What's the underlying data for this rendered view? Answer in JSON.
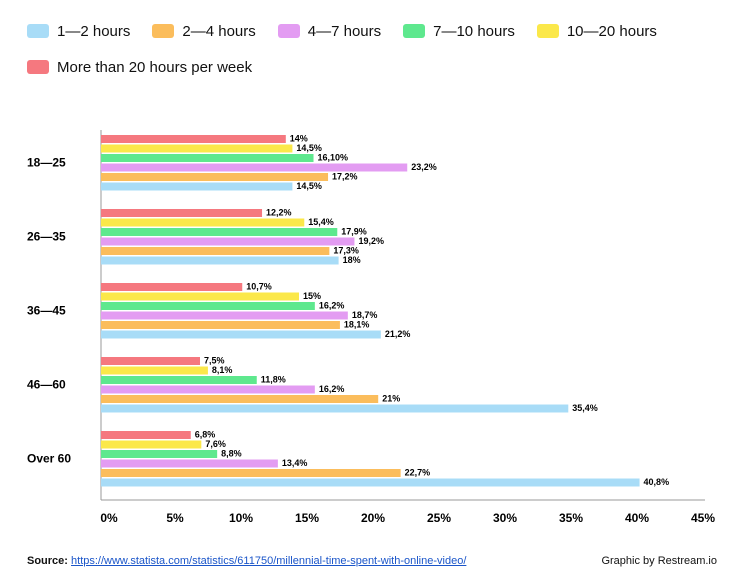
{
  "chart_data": {
    "type": "hbar",
    "categories": [
      "18—25",
      "26—35",
      "36—45",
      "46—60",
      "Over 60"
    ],
    "series": [
      {
        "name": "1—2 hours",
        "color": "#a8dcf7",
        "values": [
          14.5,
          18,
          21.2,
          35.4,
          40.8
        ],
        "value_labels": [
          "14,5%",
          "18%",
          "21,2%",
          "35,4%",
          "40,8%"
        ]
      },
      {
        "name": "2—4 hours",
        "color": "#fbbd5c",
        "values": [
          17.2,
          17.3,
          18.1,
          21,
          22.7
        ],
        "value_labels": [
          "17,2%",
          "17,3%",
          "18,1%",
          "21%",
          "22,7%"
        ]
      },
      {
        "name": "4—7 hours",
        "color": "#e39cf2",
        "values": [
          23.2,
          19.2,
          18.7,
          16.2,
          13.4
        ],
        "value_labels": [
          "23,2%",
          "19,2%",
          "18,7%",
          "16,2%",
          "13,4%"
        ]
      },
      {
        "name": "7—10 hours",
        "color": "#5ee88e",
        "values": [
          16.1,
          17.9,
          16.2,
          11.8,
          8.8
        ],
        "value_labels": [
          "16,10%",
          "17,9%",
          "16,2%",
          "11,8%",
          "8,8%"
        ]
      },
      {
        "name": "10—20 hours",
        "color": "#fbe84a",
        "values": [
          14.5,
          15.4,
          15,
          8.1,
          7.6
        ],
        "value_labels": [
          "14,5%",
          "15,4%",
          "15%",
          "8,1%",
          "7,6%"
        ]
      },
      {
        "name": "More than 20 hours per week",
        "color": "#f5787f",
        "values": [
          14,
          12.2,
          10.7,
          7.5,
          6.8
        ],
        "value_labels": [
          "14%",
          "12,2%",
          "10,7%",
          "7,5%",
          "6,8%"
        ]
      }
    ],
    "xlim": [
      0,
      45
    ],
    "xticks": [
      {
        "value": 0,
        "label": "0%"
      },
      {
        "value": 5,
        "label": "5%"
      },
      {
        "value": 10,
        "label": "10%"
      },
      {
        "value": 15,
        "label": "15%"
      },
      {
        "value": 20,
        "label": "20%"
      },
      {
        "value": 25,
        "label": "25%"
      },
      {
        "value": 30,
        "label": "30%"
      },
      {
        "value": 35,
        "label": "35%"
      },
      {
        "value": 40,
        "label": "40%"
      },
      {
        "value": 45,
        "label": "45%"
      }
    ],
    "source_label": "Source:",
    "source_url": "https://www.statista.com/statistics/611750/millennial-time-spent-with-online-video/",
    "credit": "Graphic by Restream.io"
  }
}
